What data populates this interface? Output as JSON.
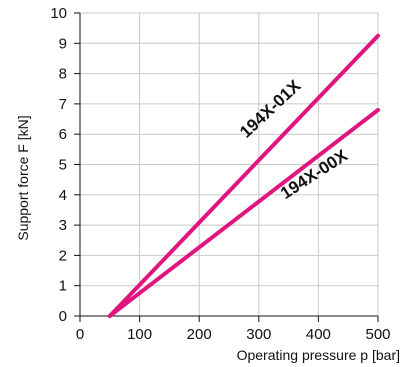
{
  "chart_data": {
    "type": "line",
    "xlabel": "Operating pressure p [bar]",
    "ylabel": "Support force F [kN]",
    "xlim": [
      0,
      500
    ],
    "ylim": [
      0,
      10
    ],
    "x_ticks": [
      0,
      100,
      200,
      300,
      400,
      500
    ],
    "y_ticks": [
      0,
      1,
      2,
      3,
      4,
      5,
      6,
      7,
      8,
      9,
      10
    ],
    "grid": true,
    "series": [
      {
        "name": "194X-01X",
        "color": "#e0157f",
        "x": [
          50,
          500
        ],
        "y": [
          0,
          9.25
        ]
      },
      {
        "name": "194X-00X",
        "color": "#e0157f",
        "x": [
          50,
          500
        ],
        "y": [
          0,
          6.8
        ]
      }
    ]
  }
}
